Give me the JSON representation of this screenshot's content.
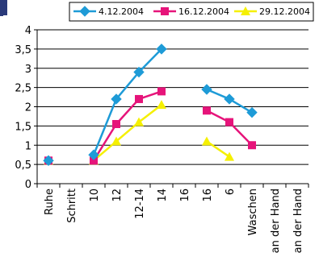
{
  "chart_data": {
    "type": "line",
    "categories": [
      "Ruhe",
      "Schritt",
      "10",
      "12",
      "12-14",
      "14",
      "16",
      "16",
      "6",
      "Waschen",
      "an der Hand",
      "an der Hand"
    ],
    "ylim": [
      0,
      4
    ],
    "yticks": [
      "0",
      "0,5",
      "1",
      "1,5",
      "2",
      "2,5",
      "3",
      "3,5",
      "4"
    ],
    "grid": true,
    "legend_position": "top",
    "series": [
      {
        "name": "4.12.2004",
        "color": "#1e9bd7",
        "marker": "diamond",
        "values": [
          0.6,
          null,
          0.75,
          2.2,
          2.9,
          3.5,
          null,
          2.45,
          2.2,
          1.85,
          null,
          null
        ]
      },
      {
        "name": "16.12.2004",
        "color": "#e6147a",
        "marker": "square",
        "values": [
          0.6,
          null,
          0.6,
          1.55,
          2.2,
          2.4,
          null,
          1.9,
          1.6,
          1.0,
          null,
          null
        ]
      },
      {
        "name": "29.12.2004",
        "color": "#f5f000",
        "marker": "triangle",
        "values": [
          0.6,
          null,
          0.6,
          1.1,
          1.6,
          2.05,
          null,
          1.1,
          0.7,
          null,
          null,
          null
        ]
      }
    ]
  }
}
